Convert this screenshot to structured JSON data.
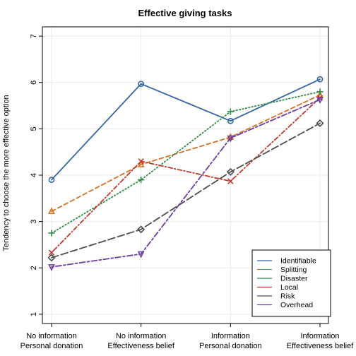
{
  "chart_data": {
    "type": "line",
    "title": "Effective giving tasks",
    "xlabel": "",
    "ylabel": "Tendency to choose the more effective option",
    "categories": [
      [
        "No information",
        "Personal donation"
      ],
      [
        "No information",
        "Effectiveness belief"
      ],
      [
        "Information",
        "Personal donation"
      ],
      [
        "Information",
        "Effectiveness belief"
      ]
    ],
    "ylim": [
      0.8,
      7.2
    ],
    "yticks": [
      1,
      2,
      3,
      4,
      5,
      6,
      7
    ],
    "grid": true,
    "legend_position": "bottom-right",
    "series": [
      {
        "name": "Identifiable",
        "values": [
          3.9,
          5.97,
          5.17,
          6.07
        ],
        "color": "#3465a4",
        "dash": "solid",
        "marker": "circle"
      },
      {
        "name": "Splitting",
        "values": [
          3.22,
          4.23,
          4.82,
          5.73
        ],
        "color": "#d9701f",
        "dash": "dashed",
        "marker": "triangle-up"
      },
      {
        "name": "Disaster",
        "values": [
          2.75,
          3.9,
          5.37,
          5.8
        ],
        "color": "#2e8b46",
        "dash": "dotted",
        "marker": "plus"
      },
      {
        "name": "Local",
        "values": [
          2.33,
          4.3,
          3.87,
          5.67
        ],
        "color": "#c0392b",
        "dash": "dotdash",
        "marker": "cross"
      },
      {
        "name": "Risk",
        "values": [
          2.22,
          2.83,
          4.07,
          5.12
        ],
        "color": "#4d4d4d",
        "dash": "longdash",
        "marker": "diamond"
      },
      {
        "name": "Overhead",
        "values": [
          2.02,
          2.3,
          4.8,
          5.63
        ],
        "color": "#6b3fa0",
        "dash": "twodash",
        "marker": "triangle-down"
      }
    ]
  }
}
